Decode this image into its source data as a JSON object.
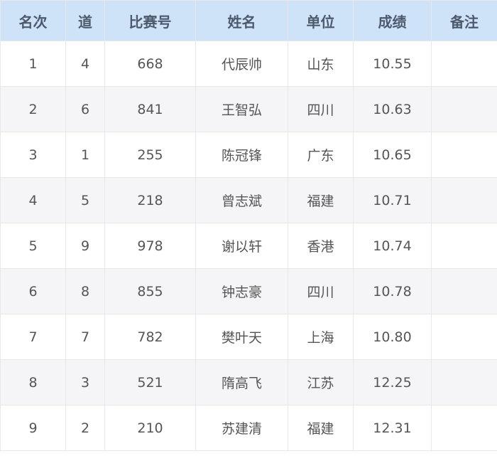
{
  "headers": [
    "名次",
    "道",
    "比赛号",
    "姓名",
    "单位",
    "成绩",
    "备注"
  ],
  "rows": [
    [
      "1",
      "4",
      "668",
      "代辰帅",
      "山东",
      "10.55",
      ""
    ],
    [
      "2",
      "6",
      "841",
      "王智弘",
      "四川",
      "10.63",
      ""
    ],
    [
      "3",
      "1",
      "255",
      "陈冠锋",
      "广东",
      "10.65",
      ""
    ],
    [
      "4",
      "5",
      "218",
      "曾志斌",
      "福建",
      "10.71",
      ""
    ],
    [
      "5",
      "9",
      "978",
      "谢以轩",
      "香港",
      "10.74",
      ""
    ],
    [
      "6",
      "8",
      "855",
      "钟志豪",
      "四川",
      "10.78",
      ""
    ],
    [
      "7",
      "7",
      "782",
      "樊叶天",
      "上海",
      "10.80",
      ""
    ],
    [
      "8",
      "3",
      "521",
      "隋高飞",
      "江苏",
      "12.25",
      ""
    ],
    [
      "9",
      "2",
      "210",
      "苏建清",
      "福建",
      "12.31",
      ""
    ]
  ],
  "colors": {
    "header_bg": "#cfe3f8",
    "alt_row_bg": "#f5f5f7"
  }
}
